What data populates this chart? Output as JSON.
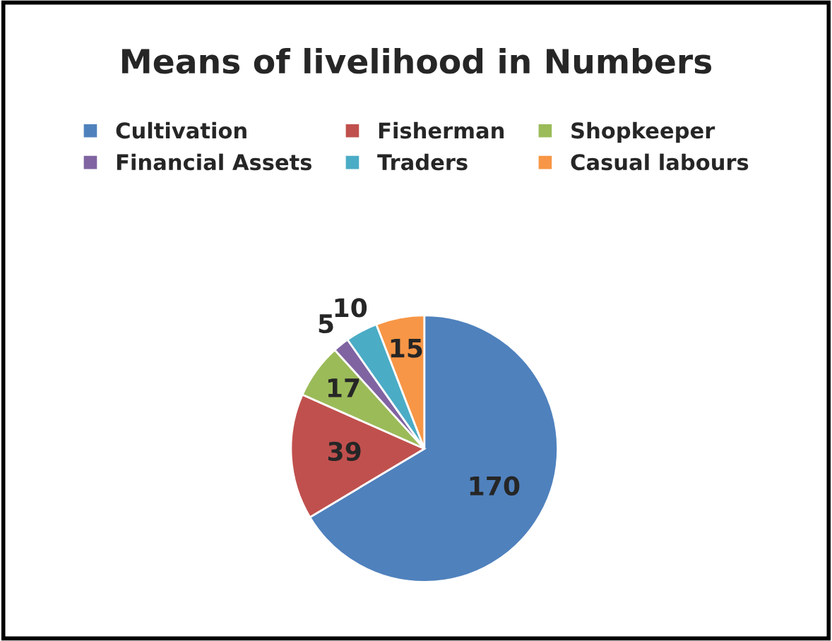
{
  "chart_data": {
    "type": "pie",
    "title": "Means of livelihood in Numbers",
    "categories": [
      "Cultivation",
      "Fisherman",
      "Shopkeeper",
      "Financial Assets",
      "Traders",
      "Casual labours"
    ],
    "values": [
      170,
      39,
      17,
      5,
      10,
      15
    ],
    "colors": [
      "#4f81bd",
      "#c0504d",
      "#9bbb59",
      "#8064a2",
      "#4bacc6",
      "#f79646"
    ],
    "data_labels": true,
    "legend": "top"
  }
}
